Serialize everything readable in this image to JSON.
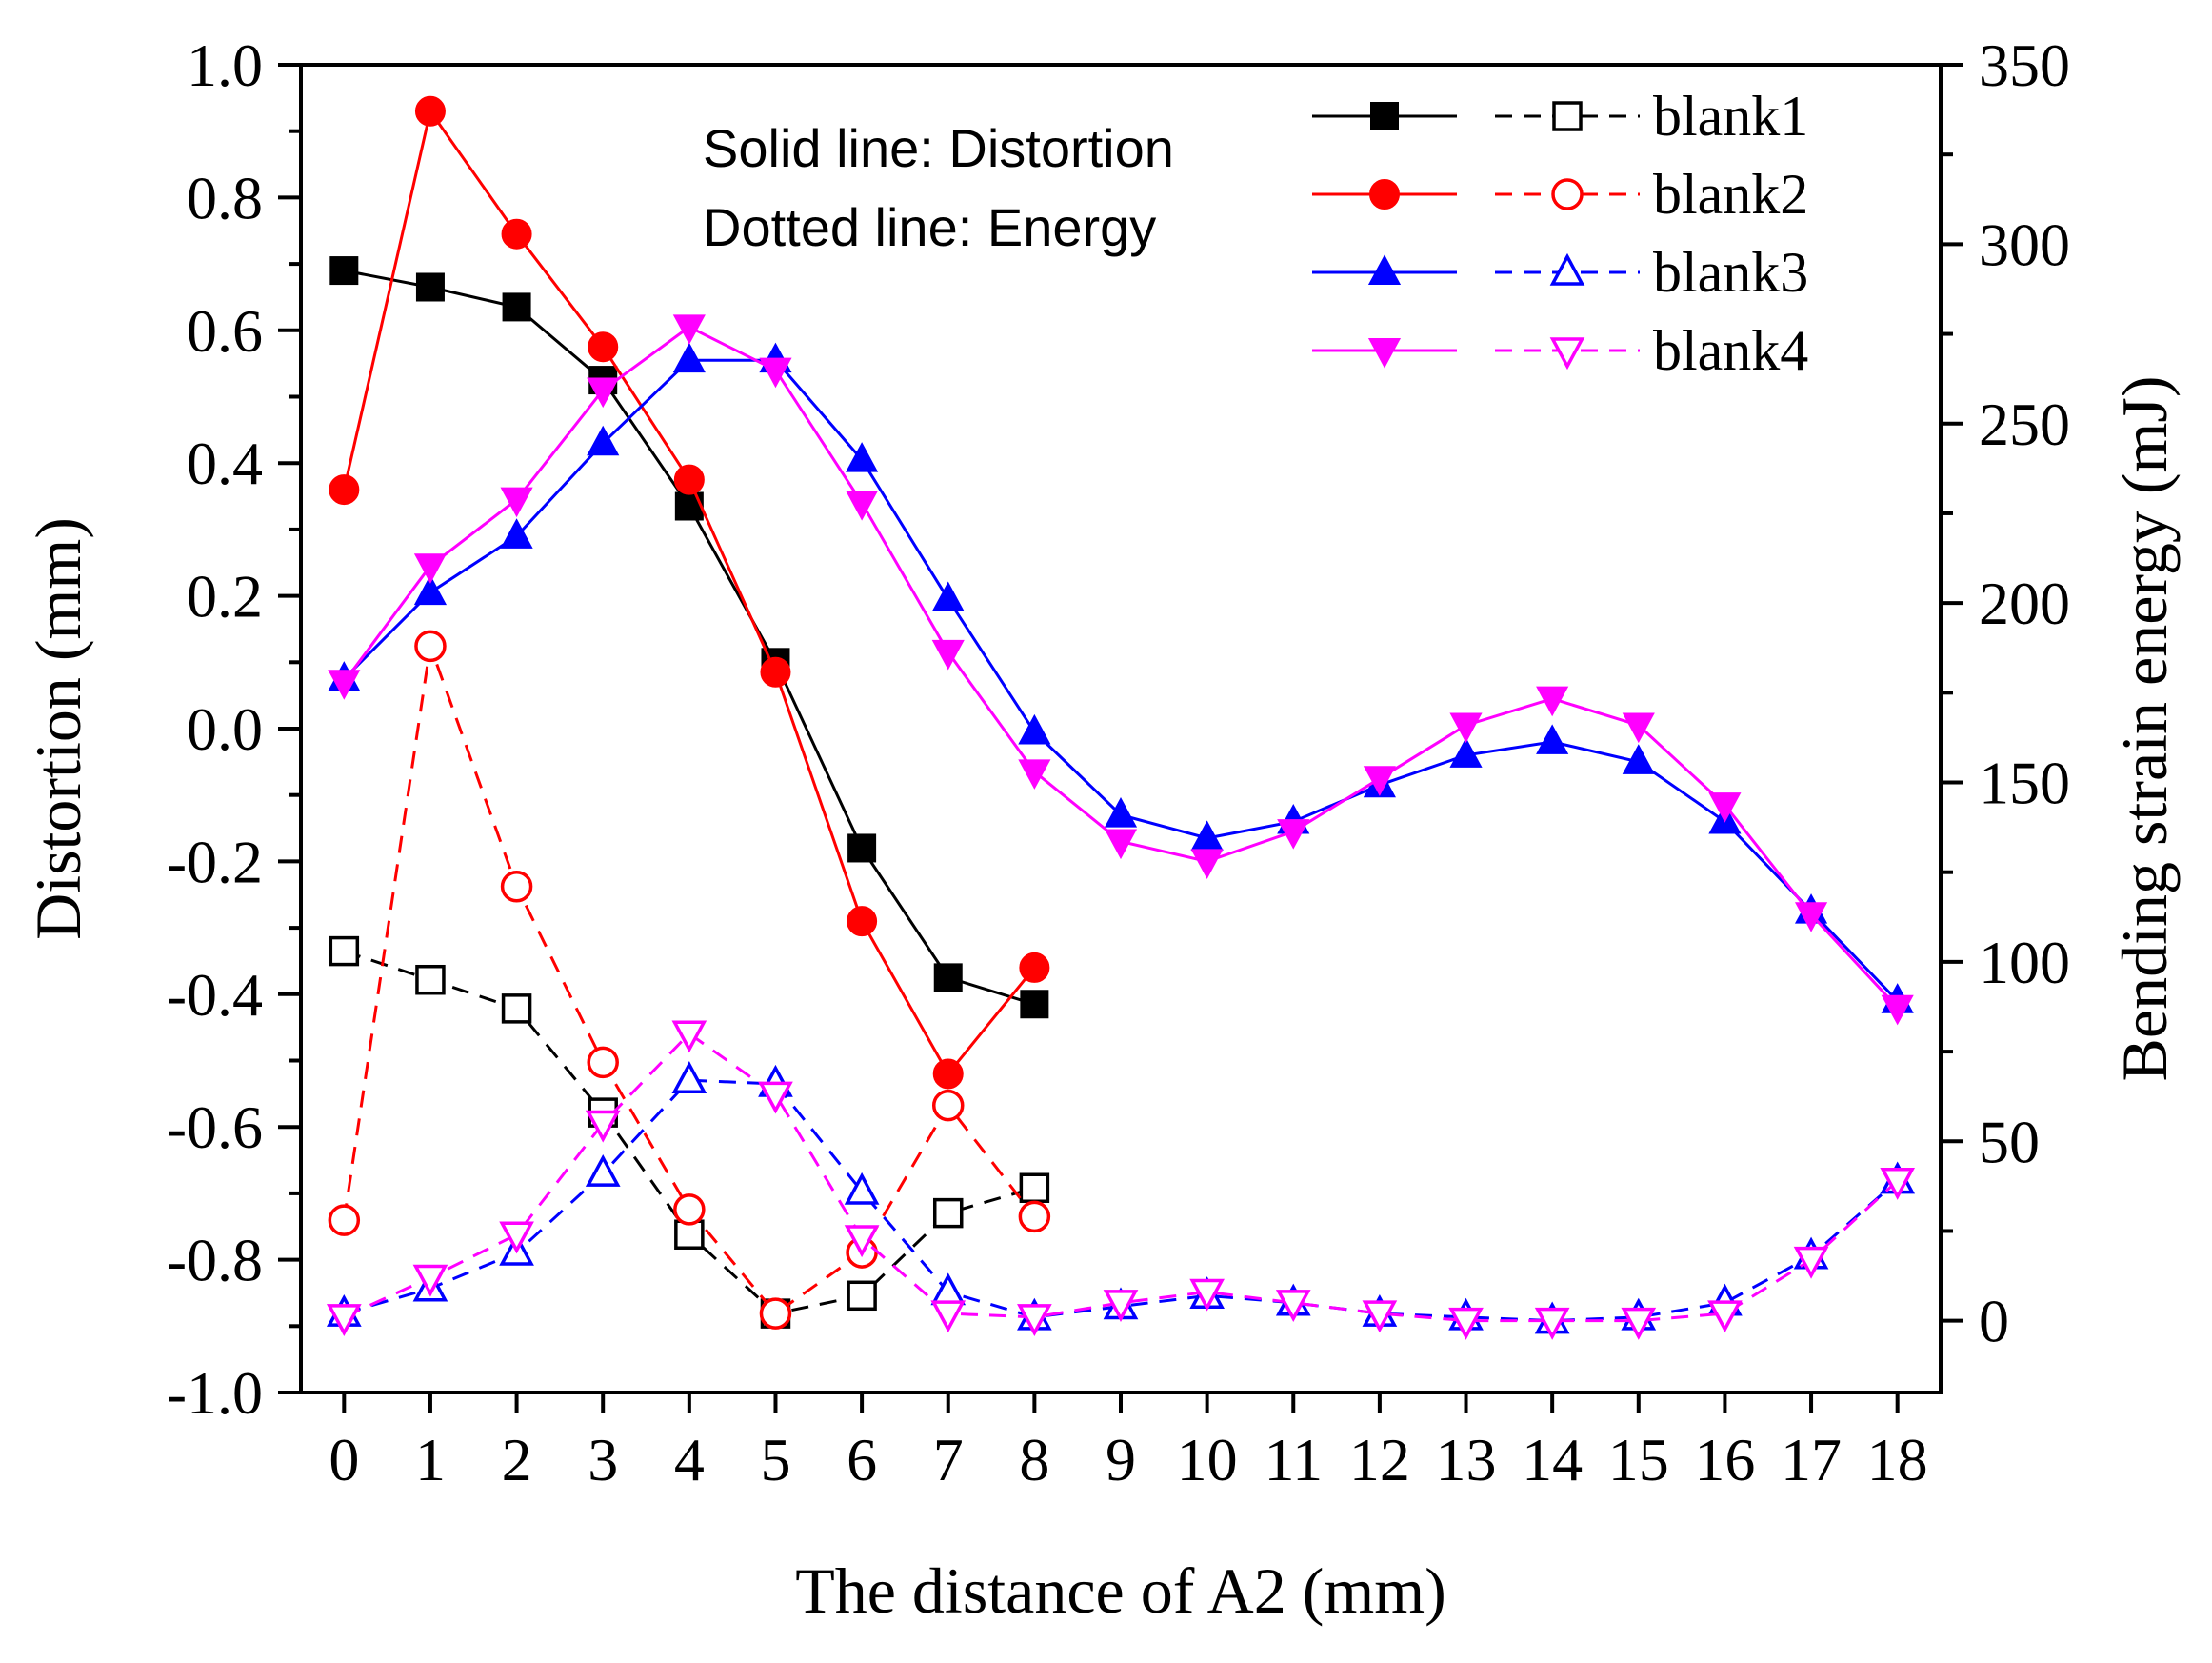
{
  "chart_data": {
    "type": "line",
    "title": "",
    "annotations": [
      "Solid line:  Distortion",
      "Dotted line:  Energy"
    ],
    "xlabel": "The distance of A2 (mm)",
    "ylabel_left": "Distortion (mm)",
    "ylabel_right": "Bending strain energy (mJ)",
    "xlim": [
      -0.5,
      18.5
    ],
    "ylim_left": [
      -1.0,
      1.0
    ],
    "ylim_right": [
      -20,
      350
    ],
    "x_ticks": [
      0,
      1,
      2,
      3,
      4,
      5,
      6,
      7,
      8,
      9,
      10,
      11,
      12,
      13,
      14,
      15,
      16,
      17,
      18
    ],
    "x_tick_labels": [
      "0",
      "1",
      "2",
      "3",
      "4",
      "5",
      "6",
      "7",
      "8",
      "9",
      "10",
      "11",
      "12",
      "13",
      "14",
      "15",
      "16",
      "17",
      "18"
    ],
    "y_left_ticks": [
      -1.0,
      -0.8,
      -0.6,
      -0.4,
      -0.2,
      0.0,
      0.2,
      0.4,
      0.6,
      0.8,
      1.0
    ],
    "y_left_tick_labels": [
      "-1.0",
      "-0.8",
      "-0.6",
      "-0.4",
      "-0.2",
      "0.0",
      "0.2",
      "0.4",
      "0.6",
      "0.8",
      "1.0"
    ],
    "y_right_ticks": [
      0,
      50,
      100,
      150,
      200,
      250,
      300,
      350
    ],
    "y_right_tick_labels": [
      "0",
      "50",
      "100",
      "150",
      "200",
      "250",
      "300",
      "350"
    ],
    "legend": [
      "blank1",
      "blank2",
      "blank3",
      "blank4"
    ],
    "series": [
      {
        "name": "blank1",
        "kind": "distortion",
        "axis": "left",
        "color": "#000000",
        "marker": "square",
        "filled": true,
        "dashed": false,
        "x": [
          0,
          1,
          2,
          3,
          4,
          5,
          6,
          7,
          8
        ],
        "values": [
          0.69,
          0.665,
          0.635,
          0.525,
          0.335,
          0.1,
          -0.18,
          -0.375,
          -0.415
        ]
      },
      {
        "name": "blank1",
        "kind": "energy",
        "axis": "right",
        "color": "#000000",
        "marker": "square",
        "filled": false,
        "dashed": true,
        "x": [
          0,
          1,
          2,
          3,
          4,
          5,
          6,
          7,
          8
        ],
        "values": [
          103,
          95,
          87,
          58,
          24,
          2,
          7,
          30,
          37
        ]
      },
      {
        "name": "blank2",
        "kind": "distortion",
        "axis": "left",
        "color": "#ff0000",
        "marker": "circle",
        "filled": true,
        "dashed": false,
        "x": [
          0,
          1,
          2,
          3,
          4,
          5,
          6,
          7,
          8
        ],
        "values": [
          0.36,
          0.93,
          0.745,
          0.575,
          0.375,
          0.085,
          -0.29,
          -0.52,
          -0.36
        ]
      },
      {
        "name": "blank2",
        "kind": "energy",
        "axis": "right",
        "color": "#ff0000",
        "marker": "circle",
        "filled": false,
        "dashed": true,
        "x": [
          0,
          1,
          2,
          3,
          4,
          5,
          6,
          7,
          8
        ],
        "values": [
          28,
          188,
          121,
          72,
          31,
          2,
          19,
          60,
          29
        ]
      },
      {
        "name": "blank3",
        "kind": "distortion",
        "axis": "left",
        "color": "#0000ff",
        "marker": "triangle-up",
        "filled": true,
        "dashed": false,
        "x": [
          0,
          1,
          2,
          3,
          4,
          5,
          6,
          7,
          8,
          9,
          10,
          11,
          12,
          13,
          14,
          15,
          16,
          17,
          18
        ],
        "values": [
          0.075,
          0.205,
          0.29,
          0.43,
          0.555,
          0.555,
          0.405,
          0.195,
          -0.005,
          -0.13,
          -0.165,
          -0.14,
          -0.085,
          -0.04,
          -0.02,
          -0.05,
          -0.14,
          -0.275,
          -0.41
        ]
      },
      {
        "name": "blank3",
        "kind": "energy",
        "axis": "right",
        "color": "#0000ff",
        "marker": "triangle-up",
        "filled": false,
        "dashed": true,
        "x": [
          0,
          1,
          2,
          3,
          4,
          5,
          6,
          7,
          8,
          9,
          10,
          11,
          12,
          13,
          14,
          15,
          16,
          17,
          18
        ],
        "values": [
          2,
          9,
          19,
          41,
          67,
          66,
          36,
          8,
          1,
          4,
          7,
          5,
          2,
          1,
          0,
          1,
          5,
          18,
          39
        ]
      },
      {
        "name": "blank4",
        "kind": "distortion",
        "axis": "left",
        "color": "#ff00ff",
        "marker": "triangle-down",
        "filled": true,
        "dashed": false,
        "x": [
          0,
          1,
          2,
          3,
          4,
          5,
          6,
          7,
          8,
          9,
          10,
          11,
          12,
          13,
          14,
          15,
          16,
          17,
          18
        ],
        "values": [
          0.07,
          0.245,
          0.345,
          0.51,
          0.605,
          0.54,
          0.34,
          0.115,
          -0.065,
          -0.17,
          -0.2,
          -0.155,
          -0.075,
          0.005,
          0.045,
          0.005,
          -0.115,
          -0.28,
          -0.42
        ]
      },
      {
        "name": "blank4",
        "kind": "energy",
        "axis": "right",
        "color": "#ff00ff",
        "marker": "triangle-down",
        "filled": false,
        "dashed": true,
        "x": [
          0,
          1,
          2,
          3,
          4,
          5,
          6,
          7,
          8,
          9,
          10,
          11,
          12,
          13,
          14,
          15,
          16,
          17,
          18
        ],
        "values": [
          1,
          12,
          24,
          55,
          80,
          63,
          23,
          2,
          1,
          5,
          8,
          5,
          2,
          0,
          0,
          0,
          2,
          17,
          39
        ]
      }
    ]
  }
}
